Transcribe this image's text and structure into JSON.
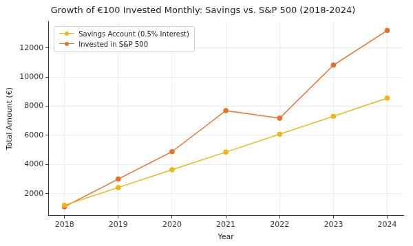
{
  "chart_data": {
    "type": "line",
    "title": "Growth of €100 Invested Monthly: Savings vs. S&P 500 (2018-2024)",
    "x_label": "Year",
    "y_label": "Total Amount (€)",
    "x": [
      2018,
      2019,
      2020,
      2021,
      2022,
      2023,
      2024
    ],
    "series": [
      {
        "name": "Savings Account (0.5% Interest)",
        "color": "#f2b416",
        "marker": "circle",
        "line_style": "solid",
        "values": [
          1200,
          2420,
          3640,
          4850,
          6080,
          7310,
          8560
        ]
      },
      {
        "name": "Invested in S&P 500",
        "color": "#e8702a",
        "marker": "circle",
        "line_style": "solid",
        "values": [
          1100,
          3000,
          4880,
          7700,
          7180,
          10820,
          13200
        ]
      }
    ],
    "xlim": [
      2017.7,
      2024.3
    ],
    "xticks": [
      2018,
      2019,
      2020,
      2021,
      2022,
      2023,
      2024
    ],
    "ylim": [
      500,
      13800
    ],
    "yticks": [
      2000,
      4000,
      6000,
      8000,
      10000,
      12000
    ],
    "grid": true,
    "legend": "upper left"
  }
}
